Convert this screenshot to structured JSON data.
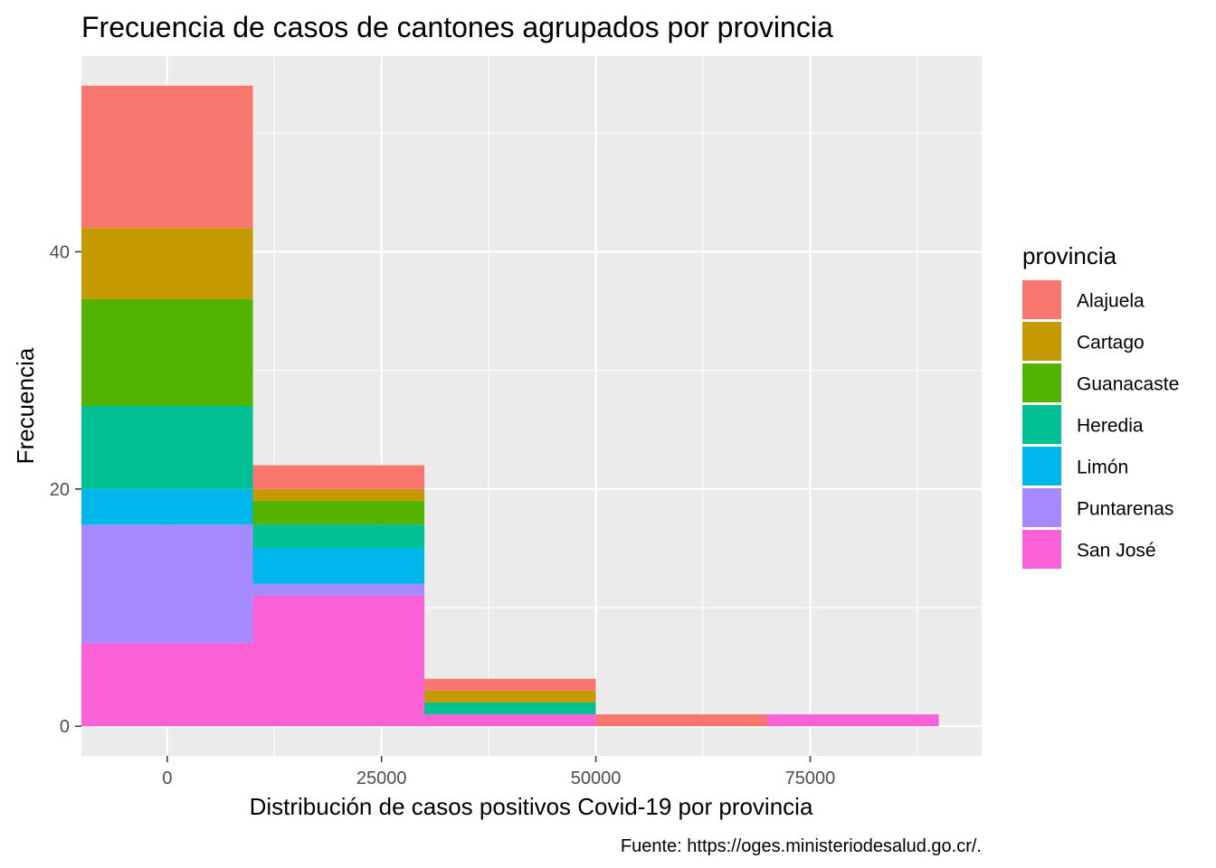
{
  "chart_data": {
    "type": "bar",
    "subtype": "stacked-histogram",
    "title": "Frecuencia de casos de cantones agrupados por provincia",
    "xlabel": "Distribución de casos positivos Covid-19 por provincia",
    "ylabel": "Frecuencia",
    "caption": "Fuente: https://oges.ministeriodesalud.go.cr/.",
    "legend_title": "provincia",
    "legend_position": "right",
    "grid": true,
    "xlim": [
      -10000,
      95000
    ],
    "ylim": [
      -2.5,
      56.5
    ],
    "x_ticks": [
      0,
      25000,
      50000,
      75000
    ],
    "x_tick_labels": [
      "0",
      "25000",
      "50000",
      "75000"
    ],
    "y_ticks": [
      0,
      20,
      40
    ],
    "y_tick_labels": [
      "0",
      "20",
      "40"
    ],
    "bins": [
      {
        "x0": -10000,
        "x1": 10000
      },
      {
        "x0": 10000,
        "x1": 30000
      },
      {
        "x0": 30000,
        "x1": 50000
      },
      {
        "x0": 50000,
        "x1": 70000
      },
      {
        "x0": 70000,
        "x1": 90000
      }
    ],
    "series": [
      {
        "name": "Alajuela",
        "color": "#F8766D",
        "values": [
          12,
          2,
          1,
          1,
          0
        ]
      },
      {
        "name": "Cartago",
        "color": "#C49A00",
        "values": [
          6,
          1,
          1,
          0,
          0
        ]
      },
      {
        "name": "Guanacaste",
        "color": "#53B400",
        "values": [
          9,
          2,
          0,
          0,
          0
        ]
      },
      {
        "name": "Heredia",
        "color": "#00C094",
        "values": [
          7,
          2,
          1,
          0,
          0
        ]
      },
      {
        "name": "Limón",
        "color": "#00B6EB",
        "values": [
          3,
          3,
          0,
          0,
          0
        ]
      },
      {
        "name": "Puntarenas",
        "color": "#A58AFF",
        "values": [
          10,
          1,
          0,
          0,
          0
        ]
      },
      {
        "name": "San José",
        "color": "#FB61D7",
        "values": [
          7,
          11,
          1,
          0,
          1
        ]
      }
    ]
  },
  "colors": {
    "panel_background": "#EBEBEB",
    "grid_major": "#FFFFFF"
  }
}
